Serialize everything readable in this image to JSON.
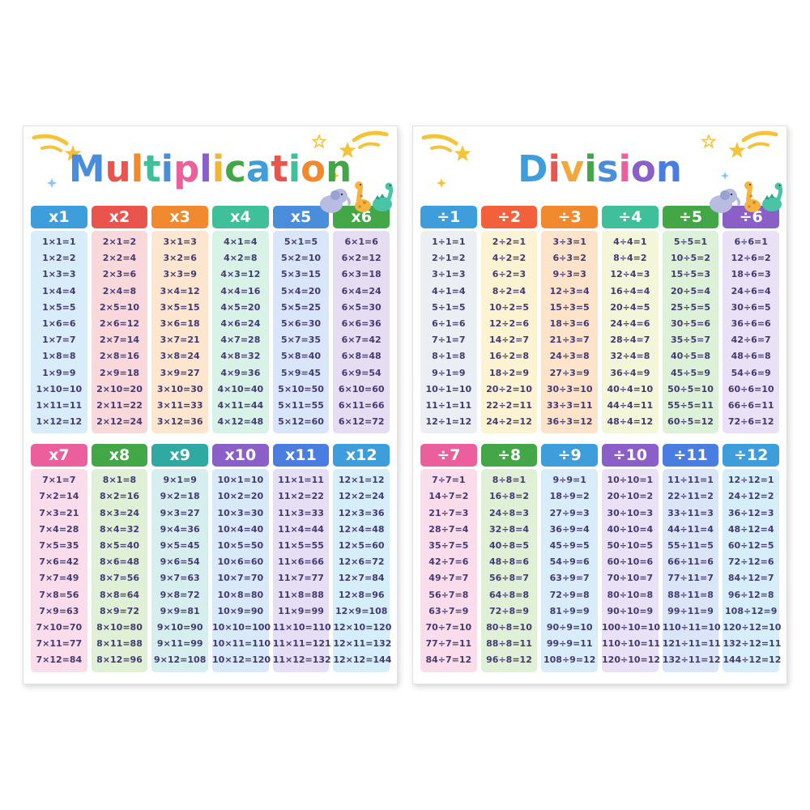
{
  "page": {
    "background": "#ffffff"
  },
  "decorations": {
    "icons": [
      "shooting-star-icon",
      "star-icon",
      "sparkle-icon",
      "elephant-icon",
      "giraffe-icon",
      "dinosaur-icon"
    ],
    "star_color": "#f5c33b",
    "sparkle_colors": [
      "#8ec7ee",
      "#f5c33b"
    ]
  },
  "posters": [
    {
      "title": "Multiplication",
      "title_colors": [
        "#4a8edb",
        "#e9554d",
        "#f18a2f",
        "#3fc09a",
        "#4a8edb",
        "#ec5f9d",
        "#8a5fc8",
        "#f2b53a",
        "#43a748",
        "#3e9edb",
        "#e9554d",
        "#3fc09a",
        "#f18a2f",
        "#43a748"
      ],
      "columns": [
        {
          "header": "x1",
          "header_color": "#3e9edb",
          "body_color": "#d8ecf9",
          "equations": [
            "1×1=1",
            "1×2=2",
            "1×3=3",
            "1×4=4",
            "1×5=5",
            "1×6=6",
            "1×7=7",
            "1×8=8",
            "1×9=9",
            "1×10=10",
            "1×11=11",
            "1×12=12"
          ]
        },
        {
          "header": "x2",
          "header_color": "#e9554d",
          "body_color": "#f9d8dc",
          "equations": [
            "2×1=2",
            "2×2=4",
            "2×3=6",
            "2×4=8",
            "2×5=10",
            "2×6=12",
            "2×7=14",
            "2×8=16",
            "2×9=18",
            "2×10=20",
            "2×11=22",
            "2×12=24"
          ]
        },
        {
          "header": "x3",
          "header_color": "#f18a2f",
          "body_color": "#fde6cf",
          "equations": [
            "3×1=3",
            "3×2=6",
            "3×3=9",
            "3×4=12",
            "3×5=15",
            "3×6=18",
            "3×7=21",
            "3×8=24",
            "3×9=27",
            "3×10=30",
            "3×11=33",
            "3×12=36"
          ]
        },
        {
          "header": "x4",
          "header_color": "#3fc09a",
          "body_color": "#d9f2e8",
          "equations": [
            "4×1=4",
            "4×2=8",
            "4×3=12",
            "4×4=16",
            "4×5=20",
            "4×6=24",
            "4×7=28",
            "4×8=32",
            "4×9=36",
            "4×10=40",
            "4×11=44",
            "4×12=48"
          ]
        },
        {
          "header": "x5",
          "header_color": "#4a8edb",
          "body_color": "#d9e5f8",
          "equations": [
            "5×1=5",
            "5×2=10",
            "5×3=15",
            "5×4=20",
            "5×5=25",
            "5×6=30",
            "5×7=35",
            "5×8=40",
            "5×9=45",
            "5×10=50",
            "5×11=55",
            "5×12=60"
          ]
        },
        {
          "header": "x6",
          "header_color": "#43a748",
          "body_color": "#e7ddf3",
          "equations": [
            "6×1=6",
            "6×2=12",
            "6×3=18",
            "6×4=24",
            "6×5=30",
            "6×6=36",
            "6×7=42",
            "6×8=48",
            "6×9=54",
            "6×10=60",
            "6×11=66",
            "6×12=72"
          ]
        },
        {
          "header": "x7",
          "header_color": "#ec5f9d",
          "body_color": "#fbdcea",
          "equations": [
            "7×1=7",
            "7×2=14",
            "7×3=21",
            "7×4=28",
            "7×5=35",
            "7×6=42",
            "7×7=49",
            "7×8=56",
            "7×9=63",
            "7×10=70",
            "7×11=77",
            "7×12=84"
          ]
        },
        {
          "header": "x8",
          "header_color": "#43a748",
          "body_color": "#dff0d7",
          "equations": [
            "8×1=8",
            "8×2=16",
            "8×3=24",
            "8×4=32",
            "8×5=40",
            "8×6=48",
            "8×7=56",
            "8×8=64",
            "8×9=72",
            "8×10=80",
            "8×11=88",
            "8×12=96"
          ]
        },
        {
          "header": "x9",
          "header_color": "#2fa9a2",
          "body_color": "#d6efee",
          "equations": [
            "9×1=9",
            "9×2=18",
            "9×3=27",
            "9×4=36",
            "9×5=45",
            "9×6=54",
            "9×7=63",
            "9×8=72",
            "9×9=81",
            "9×10=90",
            "9×11=99",
            "9×12=108"
          ]
        },
        {
          "header": "x10",
          "header_color": "#8a5fc8",
          "body_color": "#d8e9f9",
          "equations": [
            "10×1=10",
            "10×2=20",
            "10×3=30",
            "10×4=40",
            "10×5=50",
            "10×6=60",
            "10×7=70",
            "10×8=80",
            "10×9=90",
            "10×10=100",
            "10×11=110",
            "10×12=120"
          ]
        },
        {
          "header": "x11",
          "header_color": "#4a7de0",
          "body_color": "#e5def4",
          "equations": [
            "11×1=11",
            "11×2=22",
            "11×3=33",
            "11×4=44",
            "11×5=55",
            "11×6=66",
            "11×7=77",
            "11×8=88",
            "11×9=99",
            "11×10=110",
            "11×11=121",
            "11×12=132"
          ]
        },
        {
          "header": "x12",
          "header_color": "#3e9edb",
          "body_color": "#d6eef9",
          "equations": [
            "12×1=12",
            "12×2=24",
            "12×3=36",
            "12×4=48",
            "12×5=60",
            "12×6=72",
            "12×7=84",
            "12×8=96",
            "12×9=108",
            "12×10=120",
            "12×11=132",
            "12×12=144"
          ]
        }
      ]
    },
    {
      "title": "Division",
      "title_colors": [
        "#3e9edb",
        "#e9554d",
        "#f2a83a",
        "#43a748",
        "#4a8edb",
        "#ec5f9d",
        "#8a5fc8",
        "#4a7de0"
      ],
      "columns": [
        {
          "header": "÷1",
          "header_color": "#3e9edb",
          "body_color": "#ebeff3",
          "equations": [
            "1÷1=1",
            "2÷1=2",
            "3÷1=3",
            "4÷1=4",
            "5÷1=5",
            "6÷1=6",
            "7÷1=7",
            "8÷1=8",
            "9÷1=9",
            "10÷1=10",
            "11÷1=11",
            "12÷1=12"
          ]
        },
        {
          "header": "÷2",
          "header_color": "#f2603c",
          "body_color": "#fcf3d2",
          "equations": [
            "2÷2=1",
            "4÷2=2",
            "6÷2=3",
            "8÷2=4",
            "10÷2=5",
            "12÷2=6",
            "14÷2=7",
            "16÷2=8",
            "18÷2=9",
            "20÷2=10",
            "22÷2=11",
            "24÷2=12"
          ]
        },
        {
          "header": "÷3",
          "header_color": "#f18a2f",
          "body_color": "#fde3c9",
          "equations": [
            "3÷3=1",
            "6÷3=2",
            "9÷3=3",
            "12÷3=4",
            "15÷3=5",
            "18÷3=6",
            "21÷3=7",
            "24÷3=8",
            "27÷3=9",
            "30÷3=10",
            "33÷3=11",
            "36÷3=12"
          ]
        },
        {
          "header": "÷4",
          "header_color": "#3fc09a",
          "body_color": "#f3f6d9",
          "equations": [
            "4÷4=1",
            "8÷4=2",
            "12÷4=3",
            "16÷4=4",
            "20÷4=5",
            "24÷4=6",
            "28÷4=7",
            "32÷4=8",
            "36÷4=9",
            "40÷4=10",
            "44÷4=11",
            "48÷4=12"
          ]
        },
        {
          "header": "÷5",
          "header_color": "#43a748",
          "body_color": "#ddf0d8",
          "equations": [
            "5÷5=1",
            "10÷5=2",
            "15÷5=3",
            "20÷5=4",
            "25÷5=5",
            "30÷5=6",
            "35÷5=7",
            "40÷5=8",
            "45÷5=9",
            "50÷5=10",
            "55÷5=11",
            "60÷5=12"
          ]
        },
        {
          "header": "÷6",
          "header_color": "#8a5fc8",
          "body_color": "#eae1f6",
          "equations": [
            "6÷6=1",
            "12÷6=2",
            "18÷6=3",
            "24÷6=4",
            "30÷6=5",
            "36÷6=6",
            "42÷6=7",
            "48÷6=8",
            "54÷6=9",
            "60÷6=10",
            "66÷6=11",
            "72÷6=12"
          ]
        },
        {
          "header": "÷7",
          "header_color": "#ec5f9d",
          "body_color": "#fbdcea",
          "equations": [
            "7÷7=1",
            "14÷7=2",
            "21÷7=3",
            "28÷7=4",
            "35÷7=5",
            "42÷7=6",
            "49÷7=7",
            "56÷7=8",
            "63÷7=9",
            "70÷7=10",
            "77÷7=11",
            "84÷7=12"
          ]
        },
        {
          "header": "÷8",
          "header_color": "#43a748",
          "body_color": "#dff0d7",
          "equations": [
            "8÷8=1",
            "16÷8=2",
            "24÷8=3",
            "32÷8=4",
            "40÷8=5",
            "48÷8=6",
            "56÷8=7",
            "64÷8=8",
            "72÷8=9",
            "80÷8=10",
            "88÷8=11",
            "96÷8=12"
          ]
        },
        {
          "header": "÷9",
          "header_color": "#3e9edb",
          "body_color": "#d8ecf9",
          "equations": [
            "9÷9=1",
            "18÷9=2",
            "27÷9=3",
            "36÷9=4",
            "45÷9=5",
            "54÷9=6",
            "63÷9=7",
            "72÷9=8",
            "81÷9=9",
            "90÷9=10",
            "99÷9=11",
            "108÷9=12"
          ]
        },
        {
          "header": "÷10",
          "header_color": "#8a5fc8",
          "body_color": "#eae1f6",
          "equations": [
            "10÷10=1",
            "20÷10=2",
            "30÷10=3",
            "40÷10=4",
            "50÷10=5",
            "60÷10=6",
            "70÷10=7",
            "80÷10=8",
            "90÷10=9",
            "100÷10=10",
            "110÷10=11",
            "120÷10=12"
          ]
        },
        {
          "header": "÷11",
          "header_color": "#4a7de0",
          "body_color": "#dae6f8",
          "equations": [
            "11÷11=1",
            "22÷11=2",
            "33÷11=3",
            "44÷11=4",
            "55÷11=5",
            "66÷11=6",
            "77÷11=7",
            "88÷11=8",
            "99÷11=9",
            "110÷11=10",
            "121÷11=11",
            "132÷11=12"
          ]
        },
        {
          "header": "÷12",
          "header_color": "#3e9edb",
          "body_color": "#d6eef9",
          "equations": [
            "12÷12=1",
            "24÷12=2",
            "36÷12=3",
            "48÷12=4",
            "60÷12=5",
            "72÷12=6",
            "84÷12=7",
            "96÷12=8",
            "108÷12=9",
            "120÷12=10",
            "132÷12=11",
            "144÷12=12"
          ]
        }
      ]
    }
  ]
}
